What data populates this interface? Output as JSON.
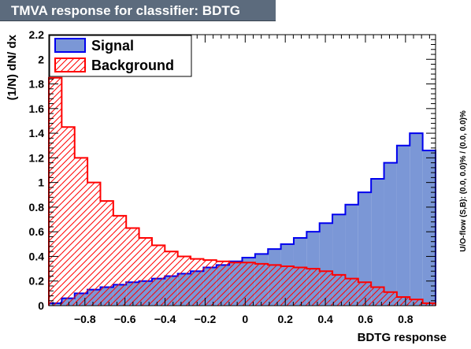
{
  "chart_data": {
    "type": "bar",
    "title": "TMVA response for classifier: BDTG",
    "xlabel": "BDTG response",
    "ylabel": "(1/N) dN/ dx",
    "side_note": "U/O-flow (S,B): (0.0, 0.0)% / (0.0, 0.0)%",
    "xlim": [
      -0.98,
      0.95
    ],
    "ylim": [
      0,
      2.2
    ],
    "x_ticks": [
      -0.8,
      -0.6,
      -0.4,
      -0.2,
      0,
      0.2,
      0.4,
      0.6,
      0.8
    ],
    "x_tick_labels": [
      "−0.8",
      "−0.6",
      "−0.4",
      "−0.2",
      "0",
      "0.2",
      "0.4",
      "0.6",
      "0.8"
    ],
    "y_ticks": [
      0,
      0.2,
      0.4,
      0.6,
      0.8,
      1,
      1.2,
      1.4,
      1.6,
      1.8,
      2,
      2.2
    ],
    "y_tick_labels": [
      "0",
      "0.2",
      "0.4",
      "0.6",
      "0.8",
      "1",
      "1.2",
      "1.4",
      "1.6",
      "1.8",
      "2",
      "2.2"
    ],
    "legend_position": "top-left",
    "bin_edges": [
      -0.98,
      -0.9157,
      -0.8513,
      -0.787,
      -0.7227,
      -0.6583,
      -0.594,
      -0.5297,
      -0.4653,
      -0.401,
      -0.3367,
      -0.2723,
      -0.208,
      -0.1437,
      -0.0793,
      -0.015,
      0.0493,
      0.1137,
      0.178,
      0.2423,
      0.3067,
      0.371,
      0.4353,
      0.4997,
      0.564,
      0.6283,
      0.6927,
      0.757,
      0.8213,
      0.8857,
      0.95
    ],
    "series": [
      {
        "name": "Signal",
        "color": "#7b97d6",
        "line_color": "#0000ee",
        "values": [
          0.02,
          0.06,
          0.1,
          0.13,
          0.15,
          0.17,
          0.19,
          0.2,
          0.22,
          0.24,
          0.26,
          0.28,
          0.31,
          0.33,
          0.36,
          0.39,
          0.42,
          0.46,
          0.5,
          0.55,
          0.6,
          0.67,
          0.74,
          0.82,
          0.92,
          1.03,
          1.16,
          1.3,
          1.4,
          1.26
        ]
      },
      {
        "name": "Background",
        "color": "#ff0000",
        "line_color": "#ff0000",
        "values": [
          1.85,
          1.45,
          1.2,
          1.0,
          0.85,
          0.73,
          0.63,
          0.55,
          0.49,
          0.44,
          0.4,
          0.38,
          0.37,
          0.36,
          0.35,
          0.35,
          0.34,
          0.33,
          0.32,
          0.31,
          0.3,
          0.28,
          0.25,
          0.22,
          0.19,
          0.15,
          0.11,
          0.07,
          0.05,
          0.02
        ]
      }
    ]
  }
}
